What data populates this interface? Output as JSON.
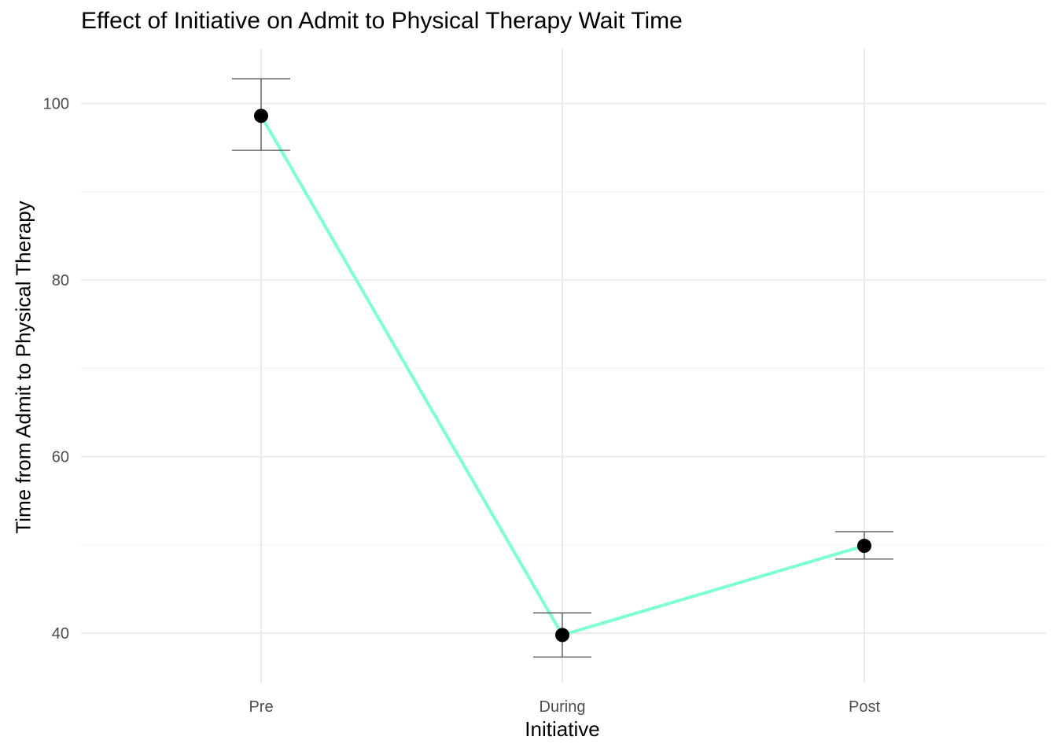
{
  "chart_data": {
    "type": "line",
    "title": "Effect of Initiative on Admit to Physical Therapy Wait Time",
    "xlabel": "Initiative",
    "ylabel": "Time from Admit to Physical Therapy",
    "categories": [
      "Pre",
      "During",
      "Post"
    ],
    "series": [
      {
        "values": [
          98.6,
          39.8,
          49.9
        ],
        "error_low": [
          94.7,
          37.3,
          48.4
        ],
        "error_high": [
          102.8,
          42.3,
          51.5
        ],
        "line_color": "#7fffd4",
        "point_color": "#000000"
      }
    ],
    "yticks": [
      40,
      60,
      80,
      100
    ],
    "ylim": [
      34.4,
      106.2
    ],
    "grid": true,
    "legend": "none"
  }
}
